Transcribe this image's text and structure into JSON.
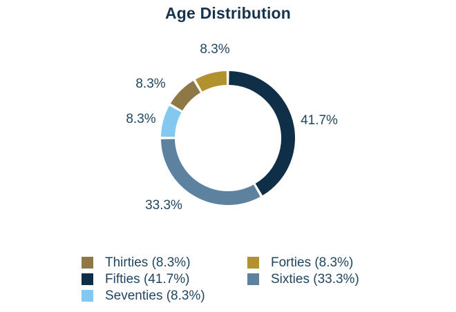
{
  "page": {
    "background_color": "#ffffff"
  },
  "chart_data": {
    "type": "pie",
    "subtype": "donut",
    "title": "Age Distribution",
    "title_color": "#16334C",
    "label_color": "#1F455F",
    "segments": [
      {
        "label": "Thirties",
        "value_pct": 8.3,
        "pct_label": "8.3%",
        "legend_label": "Thirties (8.3%)",
        "color": "#8E7845"
      },
      {
        "label": "Forties",
        "value_pct": 8.3,
        "pct_label": "8.3%",
        "legend_label": "Forties (8.3%)",
        "color": "#B2922E"
      },
      {
        "label": "Fifties",
        "value_pct": 41.7,
        "pct_label": "41.7%",
        "legend_label": "Fifties (41.7%)",
        "color": "#0F2F48"
      },
      {
        "label": "Sixties",
        "value_pct": 33.3,
        "pct_label": "33.3%",
        "legend_label": "Sixties (33.3%)",
        "color": "#5C82A0"
      },
      {
        "label": "Seventies",
        "value_pct": 8.3,
        "pct_label": "8.3%",
        "legend_label": "Seventies (8.3%)",
        "color": "#82C8EF"
      }
    ],
    "layout_hints": {
      "rotation_deg": -60,
      "clockwise": true,
      "donut_hole_ratio": 0.79,
      "segment_gap_deg": 2.3,
      "legend_position": "bottom",
      "legend_columns": 2,
      "labels_outside": true
    }
  }
}
